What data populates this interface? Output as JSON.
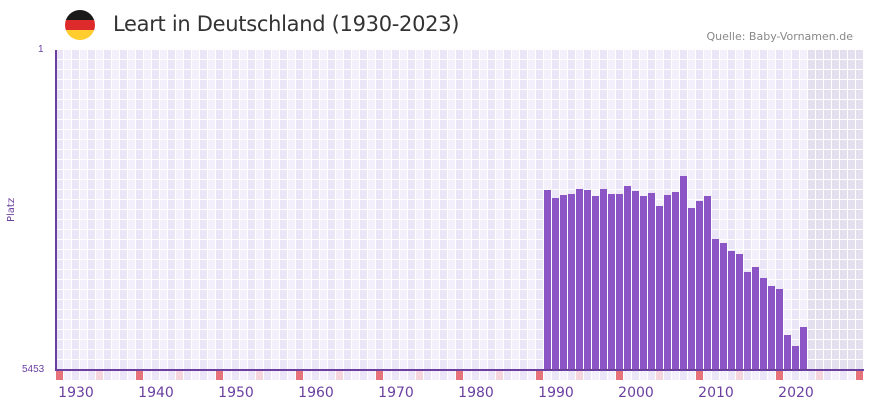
{
  "header": {
    "title": "Leart in Deutschland (1930-2023)",
    "source": "Quelle: Baby-Vornamen.de",
    "flag_colors": [
      "#1a1a1a",
      "#dd2a2a",
      "#ffce2e"
    ]
  },
  "axis": {
    "y_label": "Platz",
    "y_top": "1",
    "y_bottom": "5453",
    "x_ticks": [
      "1930",
      "1940",
      "1950",
      "1960",
      "1970",
      "1980",
      "1990",
      "2000",
      "2010",
      "2020"
    ]
  },
  "colors": {
    "bar": "#8b55c6",
    "axis": "#6a3fa0",
    "grid_light": "#f3effb",
    "grid_dark": "#ebe6f7",
    "future_shade": "#e3dfee",
    "decade_marker": "#e57379",
    "half_decade_marker": "#f5d6df"
  },
  "chart_data": {
    "type": "bar",
    "title": "Leart in Deutschland (1930-2023)",
    "xlabel": "",
    "ylabel": "Platz",
    "y_inverted": true,
    "ylim": [
      5453,
      1
    ],
    "x_range": [
      1929,
      2029
    ],
    "grid": true,
    "legend": null,
    "categories": [
      1990,
      1991,
      1992,
      1993,
      1994,
      1995,
      1996,
      1997,
      1998,
      1999,
      2000,
      2001,
      2002,
      2003,
      2004,
      2005,
      2006,
      2007,
      2008,
      2009,
      2010,
      2011,
      2012,
      2013,
      2014,
      2015,
      2016,
      2017,
      2018,
      2019,
      2020,
      2021,
      2022
    ],
    "values": [
      2386,
      2522,
      2471,
      2454,
      2369,
      2386,
      2488,
      2369,
      2454,
      2454,
      2318,
      2403,
      2488,
      2437,
      2659,
      2471,
      2420,
      2147,
      2693,
      2573,
      2488,
      3221,
      3289,
      3426,
      3477,
      3784,
      3699,
      3886,
      4022,
      4073,
      4857,
      5044,
      4721
    ]
  }
}
